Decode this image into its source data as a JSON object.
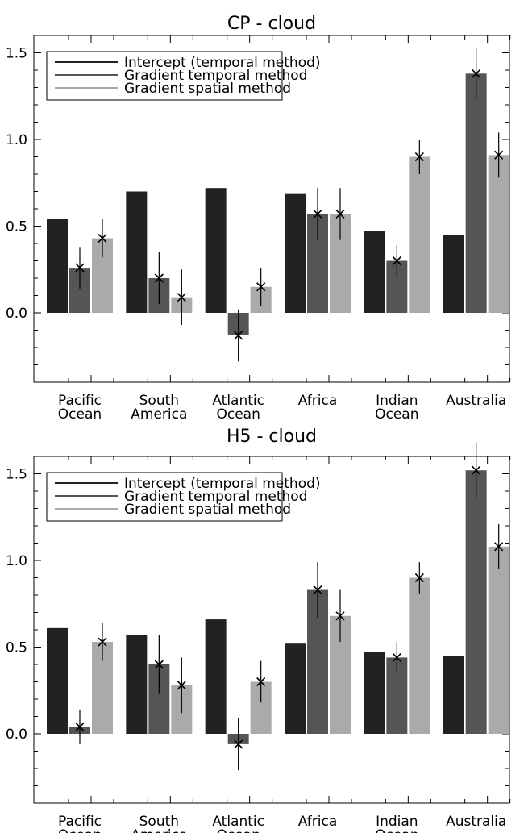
{
  "chart_data": [
    {
      "type": "bar",
      "title": "CP - cloud",
      "categories": [
        [
          "Pacific",
          "Ocean"
        ],
        [
          "South",
          "America"
        ],
        [
          "Atlantic",
          "Ocean"
        ],
        [
          "Africa"
        ],
        [
          "Indian",
          "Ocean"
        ],
        [
          "Australia"
        ]
      ],
      "ylim": [
        -0.4,
        1.6
      ],
      "yticks": [
        "0.0",
        "0.5",
        "1.0",
        "1.5"
      ],
      "legend_position": "top-left",
      "series": [
        {
          "name": "Intercept (temporal method)",
          "color": "#222222",
          "values": [
            0.54,
            0.7,
            0.72,
            0.69,
            0.47,
            0.45
          ],
          "markers": false,
          "errors": [
            null,
            null,
            null,
            null,
            null,
            null
          ]
        },
        {
          "name": "Gradient temporal method",
          "color": "#555555",
          "values": [
            0.26,
            0.2,
            -0.13,
            0.57,
            0.3,
            1.38
          ],
          "markers": true,
          "errors": [
            0.12,
            0.15,
            0.15,
            0.15,
            0.09,
            0.15
          ]
        },
        {
          "name": "Gradient spatial method",
          "color": "#aaaaaa",
          "values": [
            0.43,
            0.09,
            0.15,
            0.57,
            0.9,
            0.91
          ],
          "markers": true,
          "errors": [
            0.11,
            0.16,
            0.11,
            0.15,
            0.1,
            0.13
          ]
        }
      ]
    },
    {
      "type": "bar",
      "title": "H5 - cloud",
      "categories": [
        [
          "Pacific",
          "Ocean"
        ],
        [
          "South",
          "America"
        ],
        [
          "Atlantic",
          "Ocean"
        ],
        [
          "Africa"
        ],
        [
          "Indian",
          "Ocean"
        ],
        [
          "Australia"
        ]
      ],
      "ylim": [
        -0.4,
        1.6
      ],
      "yticks": [
        "0.0",
        "0.5",
        "1.0",
        "1.5"
      ],
      "legend_position": "top-left",
      "series": [
        {
          "name": "Intercept (temporal method)",
          "color": "#222222",
          "values": [
            0.61,
            0.57,
            0.66,
            0.52,
            0.47,
            0.45
          ],
          "markers": false,
          "errors": [
            null,
            null,
            null,
            null,
            null,
            null
          ]
        },
        {
          "name": "Gradient temporal method",
          "color": "#555555",
          "values": [
            0.04,
            0.4,
            -0.06,
            0.83,
            0.44,
            1.52
          ],
          "markers": true,
          "errors": [
            0.1,
            0.17,
            0.15,
            0.16,
            0.09,
            0.16
          ]
        },
        {
          "name": "Gradient spatial method",
          "color": "#aaaaaa",
          "values": [
            0.53,
            0.28,
            0.3,
            0.68,
            0.9,
            1.08
          ],
          "markers": true,
          "errors": [
            0.11,
            0.16,
            0.12,
            0.15,
            0.09,
            0.13
          ]
        }
      ]
    }
  ]
}
